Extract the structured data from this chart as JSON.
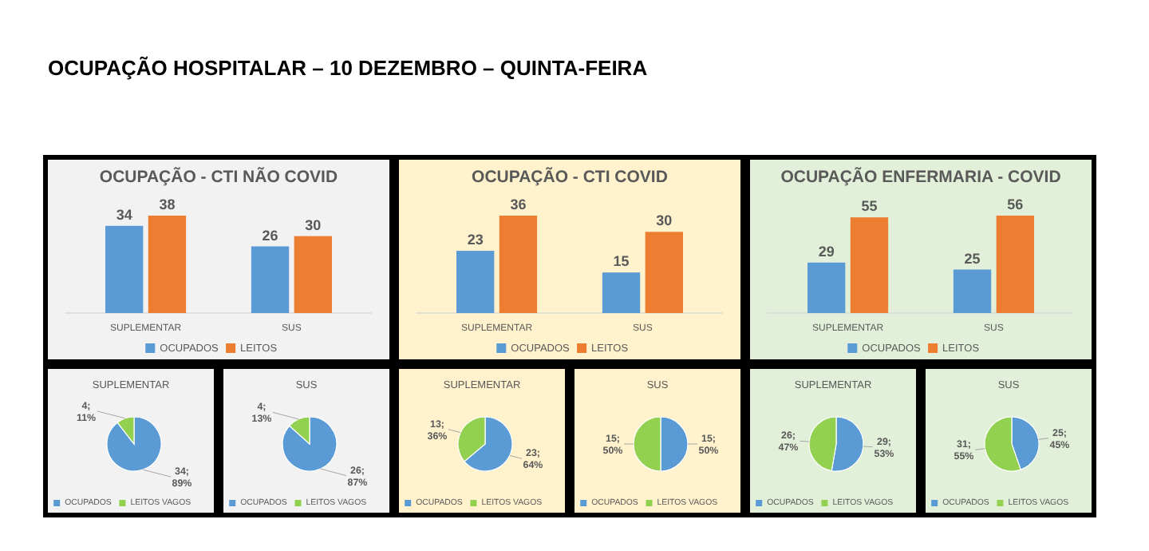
{
  "chart_data": [
    {
      "type": "other",
      "title": "OCUPAÇÃO HOSPITALAR – 10 DEZEMBRO – QUINTA-FEIRA"
    },
    {
      "type": "bar",
      "title": "OCUPAÇÃO - CTI NÃO COVID",
      "categories": [
        "SUPLEMENTAR",
        "SUS"
      ],
      "data_labels": true,
      "legend": "bottom",
      "series": [
        {
          "name": "OCUPADOS",
          "color": "#5b9bd5",
          "values": [
            34,
            26
          ]
        },
        {
          "name": "LEITOS",
          "color": "#ed7d31",
          "values": [
            38,
            30
          ]
        }
      ]
    },
    {
      "type": "bar",
      "title": "OCUPAÇÃO - CTI COVID",
      "categories": [
        "SUPLEMENTAR",
        "SUS"
      ],
      "data_labels": true,
      "legend": "bottom",
      "series": [
        {
          "name": "OCUPADOS",
          "color": "#5b9bd5",
          "values": [
            23,
            15
          ]
        },
        {
          "name": "LEITOS",
          "color": "#ed7d31",
          "values": [
            36,
            30
          ]
        }
      ]
    },
    {
      "type": "bar",
      "title": "OCUPAÇÃO ENFERMARIA - COVID",
      "categories": [
        "SUPLEMENTAR",
        "SUS"
      ],
      "data_labels": true,
      "legend": "bottom",
      "series": [
        {
          "name": "OCUPADOS",
          "color": "#5b9bd5",
          "values": [
            29,
            25
          ]
        },
        {
          "name": "LEITOS",
          "color": "#ed7d31",
          "values": [
            55,
            56
          ]
        }
      ]
    },
    {
      "type": "pie",
      "title": "SUPLEMENTAR",
      "categories": [
        "OCUPADOS",
        "LEITOS VAGOS"
      ],
      "values": [
        34,
        4
      ],
      "colors": [
        "#5b9bd5",
        "#92d050"
      ],
      "value_labels": [
        "34; 89%",
        "4; 11%"
      ],
      "legend": "bottom"
    },
    {
      "type": "pie",
      "title": "SUS",
      "categories": [
        "OCUPADOS",
        "LEITOS VAGOS"
      ],
      "values": [
        26,
        4
      ],
      "colors": [
        "#5b9bd5",
        "#92d050"
      ],
      "value_labels": [
        "26; 87%",
        "4; 13%"
      ],
      "legend": "bottom"
    },
    {
      "type": "pie",
      "title": "SUPLEMENTAR",
      "categories": [
        "OCUPADOS",
        "LEITOS VAGOS"
      ],
      "values": [
        23,
        13
      ],
      "colors": [
        "#5b9bd5",
        "#92d050"
      ],
      "value_labels": [
        "23; 64%",
        "13; 36%"
      ],
      "legend": "bottom"
    },
    {
      "type": "pie",
      "title": "SUS",
      "categories": [
        "OCUPADOS",
        "LEITOS VAGOS"
      ],
      "values": [
        15,
        15
      ],
      "colors": [
        "#5b9bd5",
        "#92d050"
      ],
      "value_labels": [
        "15; 50%",
        "15; 50%"
      ],
      "legend": "bottom"
    },
    {
      "type": "pie",
      "title": "SUPLEMENTAR",
      "categories": [
        "OCUPADOS",
        "LEITOS VAGOS"
      ],
      "values": [
        29,
        26
      ],
      "colors": [
        "#5b9bd5",
        "#92d050"
      ],
      "value_labels": [
        "29; 53%",
        "26; 47%"
      ],
      "legend": "bottom"
    },
    {
      "type": "pie",
      "title": "SUS",
      "categories": [
        "OCUPADOS",
        "LEITOS VAGOS"
      ],
      "values": [
        25,
        31
      ],
      "colors": [
        "#5b9bd5",
        "#92d050"
      ],
      "value_labels": [
        "25; 45%",
        "31; 55%"
      ],
      "legend": "bottom"
    }
  ]
}
